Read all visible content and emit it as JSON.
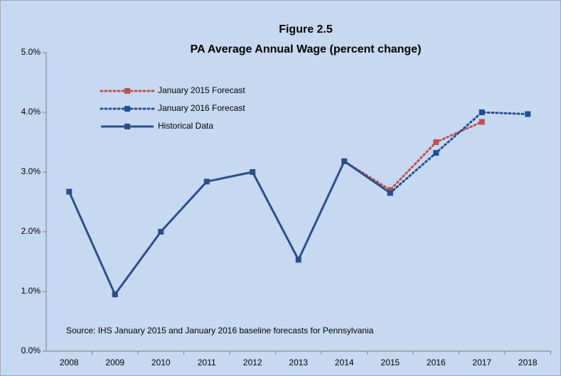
{
  "chart_data": {
    "type": "line",
    "title": "Figure 2.5",
    "subtitle": "PA Average Annual Wage (percent change)",
    "annotation": "Source:  IHS January 2015 and January 2016 baseline forecasts for Pennsylvania",
    "categories": [
      "2008",
      "2009",
      "2010",
      "2011",
      "2012",
      "2013",
      "2014",
      "2015",
      "2016",
      "2017",
      "2018"
    ],
    "series": [
      {
        "name": "January 2015 Forecast",
        "color": "#c0504d",
        "line_style": "dotted",
        "values": [
          null,
          null,
          null,
          null,
          null,
          null,
          3.18,
          2.7,
          3.5,
          3.84,
          null
        ]
      },
      {
        "name": "January 2016 Forecast",
        "color": "#1f4e96",
        "line_style": "dotted",
        "values": [
          null,
          null,
          null,
          null,
          null,
          null,
          null,
          2.65,
          3.32,
          4.0,
          3.97
        ]
      },
      {
        "name": "Historical Data",
        "color": "#2a4f8a",
        "line_style": "solid",
        "values": [
          2.67,
          0.95,
          2.0,
          2.84,
          3.0,
          1.53,
          3.18,
          2.65,
          null,
          null,
          null
        ]
      }
    ],
    "ylim": [
      0,
      5
    ],
    "yticks": [
      {
        "value": 0,
        "label": "0.0%"
      },
      {
        "value": 1,
        "label": "1.0%"
      },
      {
        "value": 2,
        "label": "2.0%"
      },
      {
        "value": 3,
        "label": "3.0%"
      },
      {
        "value": 4,
        "label": "4.0%"
      },
      {
        "value": 5,
        "label": "5.0%"
      }
    ],
    "grid": false,
    "legend": "upper left"
  }
}
